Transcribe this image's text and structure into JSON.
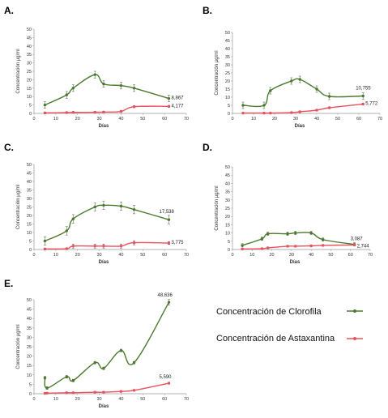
{
  "colors": {
    "chlorophyll": "#4a7a2c",
    "astaxanthin": "#e8525e",
    "axis": "#999999",
    "grid": "none"
  },
  "legend": {
    "chlorophyll": "Concentración de Clorofila",
    "astaxanthin": "Concentración de Astaxantina"
  },
  "chart_data": [
    {
      "panel": "A.",
      "type": "line",
      "xlabel": "Días",
      "ylabel": "Concentración µg/ml",
      "xlim": [
        0,
        70
      ],
      "ylim": [
        0,
        50
      ],
      "xticks": [
        0,
        10,
        20,
        30,
        40,
        50,
        60,
        70
      ],
      "yticks": [
        0,
        5,
        10,
        15,
        20,
        25,
        30,
        35,
        40,
        45,
        50
      ],
      "series": [
        {
          "key": "chlorophyll",
          "x": [
            5,
            15,
            18,
            28,
            32,
            40,
            46,
            62
          ],
          "y": [
            5,
            11,
            15,
            23,
            17.5,
            16.5,
            15,
            8.867
          ],
          "err": [
            2,
            2,
            2,
            2,
            2,
            2,
            2,
            2
          ]
        },
        {
          "key": "astaxanthin",
          "x": [
            5,
            15,
            18,
            28,
            32,
            40,
            46,
            62
          ],
          "y": [
            0.3,
            0.5,
            0.6,
            0.7,
            0.8,
            1.2,
            4.0,
            4.177
          ],
          "err": [
            0.5,
            0.5,
            0.5,
            0.5,
            0.5,
            0.5,
            0.6,
            0.6
          ]
        }
      ],
      "end_labels": [
        "8,867",
        "4,177"
      ]
    },
    {
      "panel": "B.",
      "type": "line",
      "xlabel": "Días",
      "ylabel": "Concentración µg/ml",
      "xlim": [
        0,
        70
      ],
      "ylim": [
        0,
        50
      ],
      "xticks": [
        0,
        10,
        20,
        30,
        40,
        50,
        60,
        70
      ],
      "yticks": [
        0,
        5,
        10,
        15,
        20,
        25,
        30,
        35,
        40,
        45,
        50
      ],
      "series": [
        {
          "key": "chlorophyll",
          "x": [
            5,
            15,
            18,
            28,
            32,
            40,
            46,
            62
          ],
          "y": [
            5,
            5,
            14,
            20,
            21,
            15,
            10.5,
            10.755
          ],
          "err": [
            2,
            2,
            2,
            2,
            2,
            2,
            2,
            2
          ]
        },
        {
          "key": "astaxanthin",
          "x": [
            5,
            15,
            18,
            28,
            32,
            40,
            46,
            62
          ],
          "y": [
            0.2,
            0.2,
            0.2,
            0.5,
            1.0,
            2.0,
            3.5,
            5.772
          ],
          "err": [
            0.4,
            0.4,
            0.4,
            0.4,
            0.5,
            0.5,
            0.6,
            0.6
          ]
        }
      ],
      "end_labels": [
        "10,755",
        "5,772"
      ]
    },
    {
      "panel": "C.",
      "type": "line",
      "xlabel": "Días",
      "ylabel": "Concentración µg/ml",
      "xlim": [
        0,
        70
      ],
      "ylim": [
        0,
        50
      ],
      "xticks": [
        0,
        10,
        20,
        30,
        40,
        50,
        60,
        70
      ],
      "yticks": [
        0,
        5,
        10,
        15,
        20,
        25,
        30,
        35,
        40,
        45,
        50
      ],
      "series": [
        {
          "key": "chlorophyll",
          "x": [
            5,
            15,
            18,
            28,
            32,
            40,
            46,
            62
          ],
          "y": [
            5,
            11,
            18,
            25,
            26,
            25.5,
            23.5,
            17.538
          ],
          "err": [
            2.5,
            2.5,
            2.5,
            2.5,
            2.5,
            2.5,
            2.5,
            2.5
          ]
        },
        {
          "key": "astaxanthin",
          "x": [
            5,
            15,
            18,
            28,
            32,
            40,
            46,
            62
          ],
          "y": [
            0.3,
            0.5,
            2.0,
            2.0,
            2.0,
            2.0,
            4.0,
            3.775
          ],
          "err": [
            0.5,
            0.5,
            1.2,
            1.2,
            1.2,
            1.2,
            1.2,
            0.8
          ]
        }
      ],
      "end_labels": [
        "17,538",
        "3,775"
      ]
    },
    {
      "panel": "D.",
      "type": "line",
      "xlabel": "Días",
      "ylabel": "Concentración µg/ml",
      "xlim": [
        0,
        70
      ],
      "ylim": [
        0,
        50
      ],
      "xticks": [
        0,
        10,
        20,
        30,
        40,
        50,
        60,
        70
      ],
      "yticks": [
        0,
        5,
        10,
        15,
        20,
        25,
        30,
        35,
        40,
        45,
        50
      ],
      "series": [
        {
          "key": "chlorophyll",
          "x": [
            5,
            15,
            18,
            28,
            32,
            40,
            46,
            62
          ],
          "y": [
            2.5,
            6.5,
            9.5,
            9.5,
            10,
            10,
            6,
            3.087
          ],
          "err": [
            1,
            1,
            1,
            1,
            1,
            1,
            1,
            1
          ]
        },
        {
          "key": "astaxanthin",
          "x": [
            5,
            15,
            18,
            28,
            32,
            40,
            46,
            62
          ],
          "y": [
            0.3,
            0.5,
            1.0,
            2.0,
            2.0,
            2.2,
            2.5,
            2.744
          ],
          "err": [
            0.5,
            0.5,
            0.5,
            0.5,
            0.5,
            0.5,
            0.5,
            0.5
          ]
        }
      ],
      "end_labels": [
        "3,087",
        "2,744"
      ]
    },
    {
      "panel": "E.",
      "type": "line",
      "xlabel": "Días",
      "ylabel": "Concentración µg/ml",
      "xlim": [
        0,
        70
      ],
      "ylim": [
        0,
        50
      ],
      "xticks": [
        0,
        10,
        20,
        30,
        40,
        50,
        60,
        70
      ],
      "yticks": [
        0,
        5,
        10,
        15,
        20,
        25,
        30,
        35,
        40,
        45,
        50
      ],
      "series": [
        {
          "key": "chlorophyll",
          "x": [
            5,
            6,
            15,
            18,
            28,
            32,
            40,
            46,
            62
          ],
          "y": [
            8.5,
            3,
            9,
            7,
            16.5,
            13.5,
            23,
            16.5,
            48.636
          ],
          "err": [
            0.7,
            0.7,
            0.7,
            0.7,
            0.7,
            0.7,
            0.7,
            0.7,
            1.5
          ]
        },
        {
          "key": "astaxanthin",
          "x": [
            5,
            6,
            15,
            18,
            28,
            32,
            40,
            46,
            62
          ],
          "y": [
            0.2,
            0.3,
            0.5,
            0.5,
            0.8,
            0.8,
            1.2,
            1.8,
            5.59
          ],
          "err": [
            0.4,
            0.4,
            0.4,
            0.4,
            0.4,
            0.4,
            0.4,
            0.4,
            0.5
          ]
        }
      ],
      "end_labels": [
        "48,636",
        "5,590"
      ]
    }
  ]
}
